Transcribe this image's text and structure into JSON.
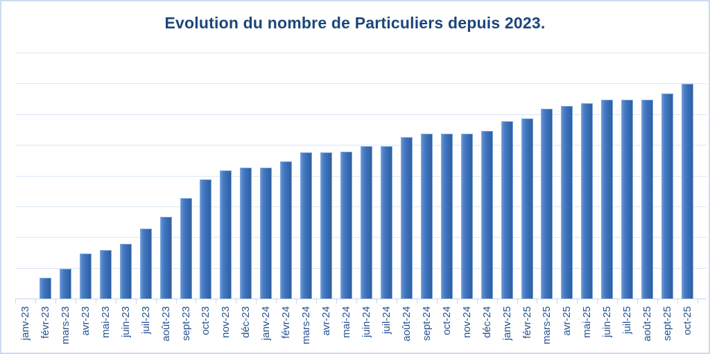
{
  "title": "Evolution du nombre de Particuliers depuis 2023.",
  "colors": {
    "title_text": "#1c4679",
    "axis_label_text": "#24518e",
    "gridline": "#d9e6f5",
    "axis_line": "#c2d6ec",
    "frame_border": "#cbdcf0",
    "bar_main": "#3b70ba",
    "bar_gradient_light": "#6b98d4",
    "bar_gradient_dark": "#2f5f9f",
    "background": "#ffffff"
  },
  "chart_data": {
    "type": "bar",
    "title": "Evolution du nombre de Particuliers depuis 2023.",
    "xlabel": "",
    "ylabel": "",
    "categories": [
      "janv-23",
      "févr-23",
      "mars-23",
      "avr-23",
      "mai-23",
      "juin-23",
      "juil-23",
      "août-23",
      "sept-23",
      "oct-23",
      "nov-23",
      "déc-23",
      "janv-24",
      "févr-24",
      "mars-24",
      "avr-24",
      "mai-24",
      "juin-24",
      "juil-24",
      "août-24",
      "sept-24",
      "oct-24",
      "nov-24",
      "déc-24",
      "janv-25",
      "févr-25",
      "mars-25",
      "avr-25",
      "mai-25",
      "juin-25",
      "juil-25",
      "août-25",
      "sept-25",
      "oct-25"
    ],
    "values": [
      0,
      68,
      97,
      146,
      158,
      178,
      228,
      266,
      328,
      387,
      417,
      427,
      427,
      447,
      476,
      476,
      477,
      497,
      497,
      526,
      537,
      537,
      537,
      546,
      578,
      585,
      617,
      627,
      636,
      647,
      647,
      647,
      667,
      698
    ],
    "ylim": [
      0,
      800
    ],
    "y_gridline_interval": 100,
    "y_axis_tick_labels_visible": false,
    "grid": true,
    "legend": false,
    "x_tick_rotation": -90,
    "note": "The y-axis has no visible tick labels; values are estimated in relative units where one gridline interval = 100."
  }
}
